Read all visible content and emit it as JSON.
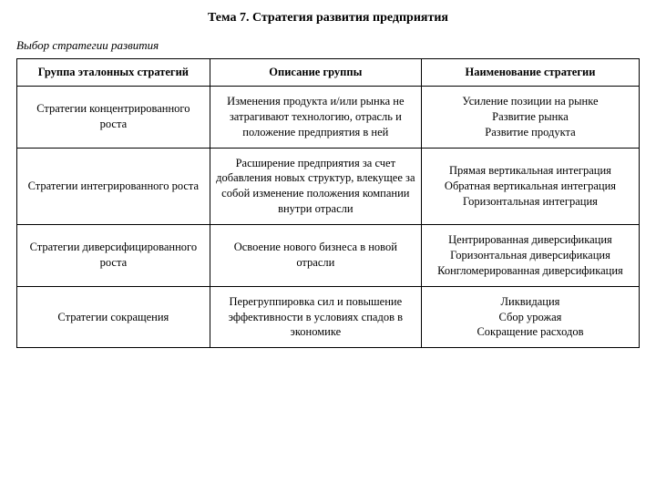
{
  "title": "Тема 7. Стратегия развития предприятия",
  "subtitle": "Выбор стратегии развития",
  "table": {
    "columns": [
      "Группа эталонных стратегий",
      "Описание группы",
      "Наименование стратегии"
    ],
    "rows": [
      {
        "group": "Стратегии концентрированного роста",
        "description": "Изменения продукта и/или рынка не затрагивают технологию, отрасль и положение предприятия в ней",
        "strategies": [
          "Усиление позиции на рынке",
          "Развитие рынка",
          "Развитие продукта"
        ]
      },
      {
        "group": "Стратегии интегрированного роста",
        "description": "Расширение предприятия за счет добавления новых структур, влекущее за собой изменение положения компании внутри отрасли",
        "strategies": [
          "Прямая вертикальная интеграция",
          "Обратная вертикальная интеграция",
          "Горизонтальная интеграция"
        ]
      },
      {
        "group": "Стратегии диверсифицированного роста",
        "description": "Освоение нового бизнеса в новой отрасли",
        "strategies": [
          "Центрированная диверсификация",
          "Горизонтальная диверсификация",
          "Конгломерированная диверсификация"
        ]
      },
      {
        "group": "Стратегии сокращения",
        "description": "Перегруппировка сил и повышение эффективности в условиях спадов в экономике",
        "strategies": [
          "Ликвидация",
          "Сбор урожая",
          "Сокращение расходов"
        ]
      }
    ],
    "style": {
      "border_color": "#000000",
      "background_color": "#ffffff",
      "text_color": "#000000",
      "font_family": "Times New Roman",
      "header_fontsize": 13,
      "cell_fontsize": 12.5,
      "col_widths_pct": [
        31,
        34,
        35
      ]
    }
  }
}
